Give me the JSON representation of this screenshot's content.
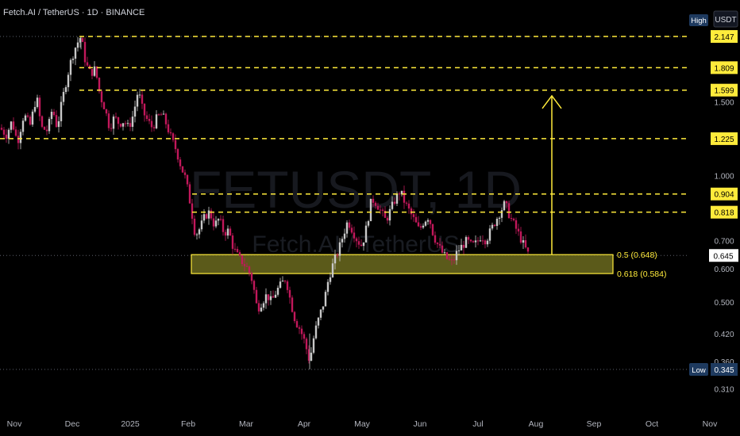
{
  "header": {
    "title": "Fetch.AI / TetherUS · 1D · BINANCE"
  },
  "price_axis": {
    "currency": "USDT",
    "high_tag": "High",
    "low_tag": "Low"
  },
  "watermark": {
    "symbol": "FETUSDT, 1D",
    "name": "Fetch.AI / TetherUS"
  },
  "colors": {
    "background": "#000000",
    "up": "#c8c8c8",
    "down": "#c2185b",
    "level": "#ffeb3b",
    "zone_fill": "#6b6a1e",
    "axis_text": "#b2b5be",
    "low_tag_bg": "#1e3a5f"
  },
  "chart_data": {
    "type": "candlestick",
    "title": "Fetch.AI / TetherUS · 1D · BINANCE",
    "symbol": "FETUSDT",
    "scale": "log",
    "ylim": [
      0.29,
      2.3
    ],
    "x_ticks": [
      "Nov",
      "Dec",
      "2025",
      "Feb",
      "Mar",
      "Apr",
      "May",
      "Jun",
      "Jul",
      "Aug",
      "Sep",
      "Oct",
      "Nov"
    ],
    "y_ticks": [
      2.147,
      1.809,
      1.599,
      1.5,
      1.225,
      1.0,
      0.904,
      0.818,
      0.7,
      0.645,
      0.6,
      0.5,
      0.42,
      0.36,
      0.345,
      0.31
    ],
    "y_tick_labels": [
      "2.147",
      "1.809",
      "1.599",
      "1.500",
      "1.225",
      "1.000",
      "0.904",
      "0.818",
      "0.700",
      "0.645",
      "0.600",
      "0.500",
      "0.420",
      "0.360",
      "0.345",
      "0.310"
    ],
    "highlighted_labels": [
      "2.147",
      "1.809",
      "1.599",
      "1.225",
      "0.904",
      "0.818"
    ],
    "resistance_levels": [
      2.147,
      1.809,
      1.599,
      1.225,
      0.904,
      0.818
    ],
    "current_price": 0.645,
    "current_price_label": "0.645",
    "high": 2.147,
    "low": 0.345,
    "low_label": "0.345",
    "fib_zone": {
      "top": 0.648,
      "bottom": 0.584,
      "top_label": "0.5 (0.648)",
      "bottom_label": "0.618 (0.584)",
      "start_month": "Feb"
    },
    "target_arrow": {
      "from": 0.648,
      "to": 1.55
    },
    "path": [
      [
        0,
        1.3
      ],
      [
        8,
        1.25
      ],
      [
        15,
        1.35
      ],
      [
        22,
        1.2
      ],
      [
        30,
        1.4
      ],
      [
        38,
        1.32
      ],
      [
        46,
        1.55
      ],
      [
        52,
        1.3
      ],
      [
        60,
        1.28
      ],
      [
        66,
        1.45
      ],
      [
        72,
        1.3
      ],
      [
        78,
        1.5
      ],
      [
        84,
        1.7
      ],
      [
        90,
        1.9
      ],
      [
        96,
        2.05
      ],
      [
        102,
        2.147
      ],
      [
        108,
        1.85
      ],
      [
        114,
        1.75
      ],
      [
        120,
        1.8
      ],
      [
        126,
        1.55
      ],
      [
        132,
        1.45
      ],
      [
        138,
        1.3
      ],
      [
        144,
        1.38
      ],
      [
        150,
        1.33
      ],
      [
        156,
        1.35
      ],
      [
        162,
        1.3
      ],
      [
        168,
        1.4
      ],
      [
        174,
        1.6
      ],
      [
        180,
        1.42
      ],
      [
        186,
        1.35
      ],
      [
        192,
        1.3
      ],
      [
        198,
        1.38
      ],
      [
        204,
        1.4
      ],
      [
        210,
        1.32
      ],
      [
        216,
        1.22
      ],
      [
        222,
        1.15
      ],
      [
        228,
        1.05
      ],
      [
        234,
        0.98
      ],
      [
        240,
        0.85
      ],
      [
        246,
        0.72
      ],
      [
        252,
        0.75
      ],
      [
        258,
        0.8
      ],
      [
        264,
        0.82
      ],
      [
        270,
        0.76
      ],
      [
        276,
        0.79
      ],
      [
        282,
        0.73
      ],
      [
        288,
        0.74
      ],
      [
        294,
        0.67
      ],
      [
        300,
        0.64
      ],
      [
        306,
        0.62
      ],
      [
        312,
        0.6
      ],
      [
        318,
        0.56
      ],
      [
        324,
        0.48
      ],
      [
        330,
        0.5
      ],
      [
        336,
        0.52
      ],
      [
        342,
        0.5
      ],
      [
        348,
        0.53
      ],
      [
        354,
        0.55
      ],
      [
        360,
        0.57
      ],
      [
        366,
        0.5
      ],
      [
        372,
        0.45
      ],
      [
        378,
        0.43
      ],
      [
        384,
        0.4
      ],
      [
        390,
        0.36
      ],
      [
        396,
        0.42
      ],
      [
        402,
        0.46
      ],
      [
        408,
        0.5
      ],
      [
        414,
        0.57
      ],
      [
        420,
        0.62
      ],
      [
        426,
        0.66
      ],
      [
        432,
        0.72
      ],
      [
        438,
        0.78
      ],
      [
        444,
        0.74
      ],
      [
        450,
        0.7
      ],
      [
        456,
        0.68
      ],
      [
        462,
        0.76
      ],
      [
        468,
        0.88
      ],
      [
        474,
        0.86
      ],
      [
        480,
        0.82
      ],
      [
        486,
        0.78
      ],
      [
        492,
        0.83
      ],
      [
        498,
        0.88
      ],
      [
        504,
        0.92
      ],
      [
        510,
        0.86
      ],
      [
        516,
        0.82
      ],
      [
        522,
        0.78
      ],
      [
        528,
        0.74
      ],
      [
        534,
        0.78
      ],
      [
        540,
        0.8
      ],
      [
        546,
        0.72
      ],
      [
        552,
        0.68
      ],
      [
        558,
        0.65
      ],
      [
        564,
        0.63
      ],
      [
        570,
        0.62
      ],
      [
        576,
        0.66
      ],
      [
        582,
        0.68
      ],
      [
        588,
        0.7
      ],
      [
        594,
        0.68
      ],
      [
        600,
        0.69
      ],
      [
        606,
        0.72
      ],
      [
        612,
        0.7
      ],
      [
        618,
        0.74
      ],
      [
        624,
        0.78
      ],
      [
        630,
        0.82
      ],
      [
        636,
        0.86
      ],
      [
        642,
        0.8
      ],
      [
        648,
        0.76
      ],
      [
        654,
        0.72
      ],
      [
        660,
        0.68
      ],
      [
        666,
        0.645
      ]
    ]
  }
}
